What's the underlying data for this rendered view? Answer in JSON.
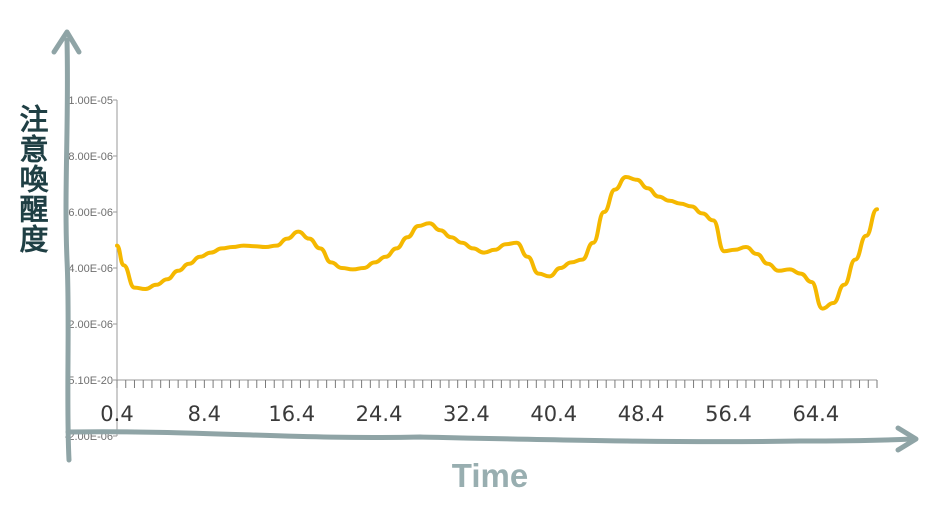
{
  "chart_data": {
    "type": "line",
    "title": "",
    "xlabel": "Time",
    "ylabel": "注意喚醒度",
    "y_tick_labels": [
      "1.00E-05",
      "8.00E-06",
      "6.00E-06",
      "4.00E-06",
      "2.00E-06",
      "5.10E-20",
      "-2.00E-06"
    ],
    "y_tick_values": [
      1e-05,
      8e-06,
      6e-06,
      4e-06,
      2e-06,
      5.1e-20,
      -2e-06
    ],
    "ylim": [
      -2e-06,
      1e-05
    ],
    "xlim": [
      0.4,
      70
    ],
    "x_tick_labels": [
      "0.4",
      "8.4",
      "16.4",
      "24.4",
      "32.4",
      "40.4",
      "48.4",
      "56.4",
      "64.4"
    ],
    "x_tick_values": [
      0.4,
      8.4,
      16.4,
      24.4,
      32.4,
      40.4,
      48.4,
      56.4,
      64.4
    ],
    "grid": false,
    "series": [
      {
        "color": "#f5b800",
        "x": [
          0.4,
          1.0,
          2.0,
          3.0,
          4.0,
          5.0,
          6.0,
          7.0,
          8.0,
          9.0,
          10.0,
          11.0,
          12.0,
          13.0,
          14.0,
          15.0,
          16.0,
          17.0,
          18.0,
          19.0,
          20.0,
          21.0,
          22.0,
          23.0,
          24.0,
          25.0,
          26.0,
          27.0,
          28.0,
          29.0,
          30.0,
          31.0,
          32.0,
          33.0,
          34.0,
          35.0,
          36.0,
          37.0,
          38.0,
          39.0,
          40.0,
          41.0,
          42.0,
          43.0,
          44.0,
          45.0,
          46.0,
          47.0,
          48.0,
          49.0,
          50.0,
          51.0,
          52.0,
          53.0,
          54.0,
          55.0,
          56.0,
          57.0,
          58.0,
          59.0,
          60.0,
          61.0,
          62.0,
          63.0,
          64.0,
          65.0,
          66.0,
          67.0,
          68.0,
          69.0,
          70.0
        ],
        "values": [
          4.8e-06,
          4.1e-06,
          3.3e-06,
          3.25e-06,
          3.4e-06,
          3.6e-06,
          3.9e-06,
          4.15e-06,
          4.4e-06,
          4.55e-06,
          4.7e-06,
          4.75e-06,
          4.8e-06,
          4.78e-06,
          4.75e-06,
          4.8e-06,
          5.05e-06,
          5.3e-06,
          5.05e-06,
          4.7e-06,
          4.2e-06,
          4e-06,
          3.95e-06,
          4e-06,
          4.2e-06,
          4.4e-06,
          4.7e-06,
          5.1e-06,
          5.5e-06,
          5.6e-06,
          5.35e-06,
          5.1e-06,
          4.9e-06,
          4.7e-06,
          4.55e-06,
          4.65e-06,
          4.85e-06,
          4.9e-06,
          4.4e-06,
          3.8e-06,
          3.7e-06,
          4e-06,
          4.2e-06,
          4.3e-06,
          4.9e-06,
          6e-06,
          6.8e-06,
          7.25e-06,
          7.15e-06,
          6.85e-06,
          6.55e-06,
          6.4e-06,
          6.3e-06,
          6.2e-06,
          5.95e-06,
          5.7e-06,
          4.6e-06,
          4.65e-06,
          4.75e-06,
          4.5e-06,
          4.15e-06,
          3.9e-06,
          3.95e-06,
          3.8e-06,
          3.5e-06,
          2.55e-06,
          2.75e-06,
          3.4e-06,
          4.3e-06,
          5.15e-06,
          6.1e-06
        ]
      }
    ]
  },
  "colors": {
    "line": "#f5b800",
    "arrow": "#8fa4a6",
    "ylabel": "#1f3f44",
    "xlabel": "#98aeb0",
    "axis": "#9a9a9a"
  }
}
